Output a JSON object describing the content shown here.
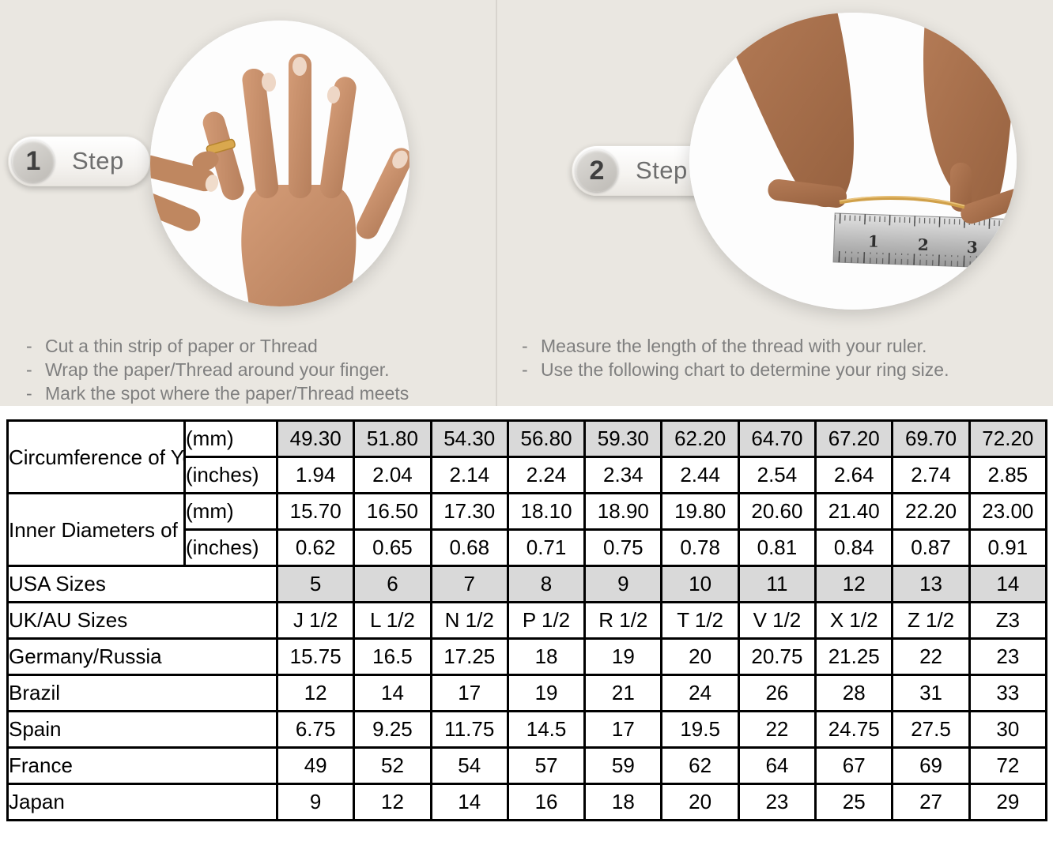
{
  "bullet_dash": "-",
  "colors": {
    "panel_background": "#eae7e1",
    "panel_divider": "#d8d4ce",
    "table_shaded_cell": "#d9d9d9",
    "table_border": "#000000",
    "bullet_text": "#7f7f7f",
    "step_label_text": "#6e6e6e",
    "gold_thread": "#d2a24c"
  },
  "steps": [
    {
      "number": "1",
      "label": "Step",
      "image": "hand-with-gold-ring-photo",
      "bullets": [
        "Cut a thin strip of paper or Thread",
        "Wrap the paper/Thread around your finger.",
        "Mark the spot where the paper/Thread meets"
      ]
    },
    {
      "number": "2",
      "label": "Step",
      "image": "measuring-thread-with-ruler-photo",
      "bullets": [
        "Measure the length of the thread with your ruler.",
        "Use the following chart to determine your ring size."
      ]
    }
  ],
  "table": {
    "groups": [
      {
        "label": "Circumference of Your Finger",
        "rows": [
          {
            "unit": "(mm)",
            "shaded": true,
            "values": [
              "49.30",
              "51.80",
              "54.30",
              "56.80",
              "59.30",
              "62.20",
              "64.70",
              "67.20",
              "69.70",
              "72.20"
            ]
          },
          {
            "unit": "(inches)",
            "shaded": false,
            "values": [
              "1.94",
              "2.04",
              "2.14",
              "2.24",
              "2.34",
              "2.44",
              "2.54",
              "2.64",
              "2.74",
              "2.85"
            ]
          }
        ]
      },
      {
        "label": "Inner Diameters of Rings",
        "rows": [
          {
            "unit": "(mm)",
            "shaded": false,
            "values": [
              "15.70",
              "16.50",
              "17.30",
              "18.10",
              "18.90",
              "19.80",
              "20.60",
              "21.40",
              "22.20",
              "23.00"
            ]
          },
          {
            "unit": "(inches)",
            "shaded": false,
            "values": [
              "0.62",
              "0.65",
              "0.68",
              "0.71",
              "0.75",
              "0.78",
              "0.81",
              "0.84",
              "0.87",
              "0.91"
            ]
          }
        ]
      }
    ],
    "size_rows": [
      {
        "label": "USA Sizes",
        "shaded": true,
        "values": [
          "5",
          "6",
          "7",
          "8",
          "9",
          "10",
          "11",
          "12",
          "13",
          "14"
        ]
      },
      {
        "label": "UK/AU Sizes",
        "shaded": false,
        "values": [
          "J 1/2",
          "L 1/2",
          "N 1/2",
          "P 1/2",
          "R 1/2",
          "T 1/2",
          "V 1/2",
          "X 1/2",
          "Z 1/2",
          "Z3"
        ]
      },
      {
        "label": "Germany/Russia",
        "shaded": false,
        "values": [
          "15.75",
          "16.5",
          "17.25",
          "18",
          "19",
          "20",
          "20.75",
          "21.25",
          "22",
          "23"
        ]
      },
      {
        "label": "Brazil",
        "shaded": false,
        "values": [
          "12",
          "14",
          "17",
          "19",
          "21",
          "24",
          "26",
          "28",
          "31",
          "33"
        ]
      },
      {
        "label": "Spain",
        "shaded": false,
        "values": [
          "6.75",
          "9.25",
          "11.75",
          "14.5",
          "17",
          "19.5",
          "22",
          "24.75",
          "27.5",
          "30"
        ]
      },
      {
        "label": "France",
        "shaded": false,
        "values": [
          "49",
          "52",
          "54",
          "57",
          "59",
          "62",
          "64",
          "67",
          "69",
          "72"
        ]
      },
      {
        "label": "Japan",
        "shaded": false,
        "values": [
          "9",
          "12",
          "14",
          "16",
          "18",
          "20",
          "23",
          "25",
          "27",
          "29"
        ]
      }
    ]
  }
}
